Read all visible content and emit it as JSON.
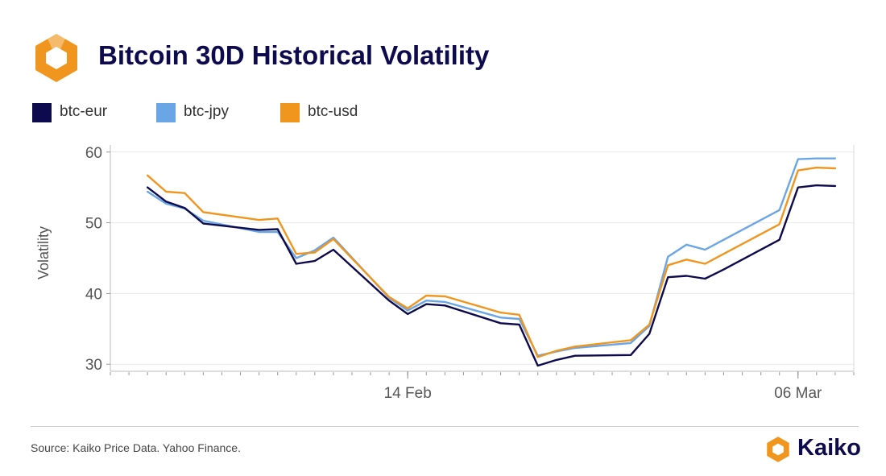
{
  "header": {
    "title": "Bitcoin 30D Historical Volatility"
  },
  "footer": {
    "source": "Source: Kaiko Price Data. Yahoo Finance.",
    "brand": "Kaiko"
  },
  "colors": {
    "brand_orange": "#f0961e",
    "brand_navy": "#0d0a4d",
    "grid": "#e8e8e8"
  },
  "chart_data": {
    "type": "line",
    "title": "Bitcoin 30D Historical Volatility",
    "xlabel": "",
    "ylabel": "Volatility",
    "ylim": [
      29,
      61
    ],
    "yticks": [
      30,
      40,
      50,
      60
    ],
    "xlim": [
      "2024-01-29",
      "2024-03-09"
    ],
    "xticks": [
      {
        "date": "2024-02-14",
        "label": "14 Feb"
      },
      {
        "date": "2024-03-06",
        "label": "06 Mar"
      }
    ],
    "grid": "horizontal",
    "legend": "top-left",
    "x": [
      "2024-01-31",
      "2024-02-01",
      "2024-02-02",
      "2024-02-03",
      "2024-02-06",
      "2024-02-07",
      "2024-02-08",
      "2024-02-09",
      "2024-02-10",
      "2024-02-13",
      "2024-02-14",
      "2024-02-15",
      "2024-02-16",
      "2024-02-19",
      "2024-02-20",
      "2024-02-21",
      "2024-02-22",
      "2024-02-23",
      "2024-02-26",
      "2024-02-27",
      "2024-02-28",
      "2024-02-29",
      "2024-03-01",
      "2024-03-02",
      "2024-03-05",
      "2024-03-06",
      "2024-03-07",
      "2024-03-08"
    ],
    "series": [
      {
        "name": "btc-eur",
        "color": "#0d0a4d",
        "values": [
          55.0,
          53.0,
          52.1,
          49.9,
          49.0,
          49.1,
          44.2,
          44.6,
          46.2,
          39.0,
          37.1,
          38.5,
          38.3,
          35.8,
          35.6,
          29.8,
          30.6,
          31.2,
          31.3,
          34.3,
          42.3,
          42.5,
          42.1,
          43.4,
          47.6,
          55.0,
          55.3,
          55.2
        ]
      },
      {
        "name": "btc-jpy",
        "color": "#6aa5e6",
        "values": [
          54.4,
          52.7,
          52.0,
          50.3,
          48.7,
          48.7,
          45.0,
          46.1,
          47.9,
          39.4,
          37.6,
          39.0,
          38.8,
          36.6,
          36.4,
          31.2,
          31.8,
          32.3,
          33.0,
          35.4,
          45.2,
          46.9,
          46.2,
          47.6,
          51.8,
          59.0,
          59.1,
          59.1
        ]
      },
      {
        "name": "btc-usd",
        "color": "#f0961e",
        "values": [
          56.7,
          54.4,
          54.2,
          51.5,
          50.4,
          50.6,
          45.6,
          45.8,
          47.7,
          39.5,
          37.9,
          39.7,
          39.6,
          37.3,
          37.0,
          31.0,
          31.9,
          32.5,
          33.4,
          35.6,
          44.0,
          44.8,
          44.2,
          45.6,
          49.8,
          57.4,
          57.8,
          57.7
        ]
      }
    ]
  }
}
